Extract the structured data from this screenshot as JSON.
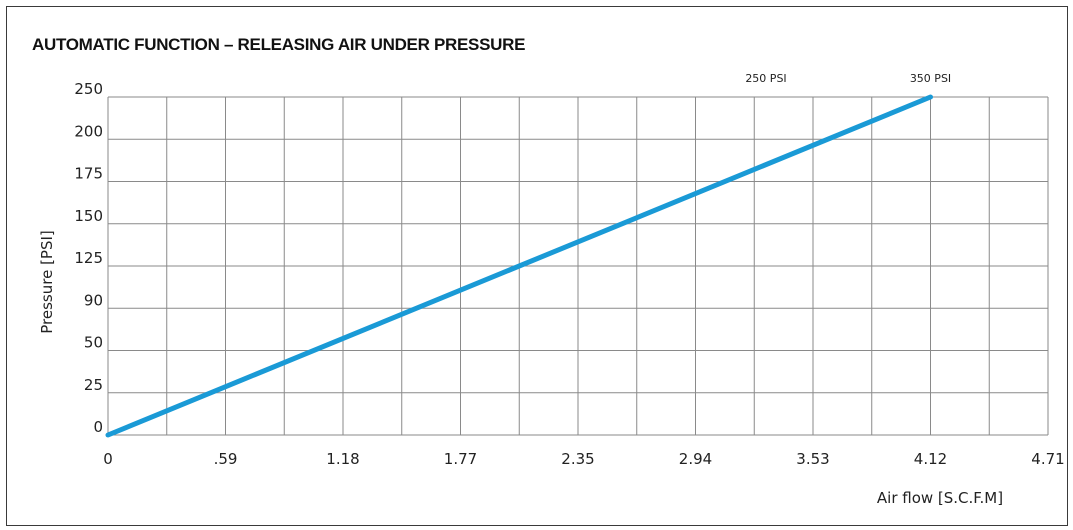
{
  "chart_data": {
    "type": "line",
    "title": "AUTOMATIC FUNCTION – RELEASING AIR UNDER PRESSURE",
    "xlabel": "Air flow [S.C.F.M]",
    "ylabel": "Pressure [PSI]",
    "x_tick_labels": [
      "0",
      ".59",
      "1.18",
      "1.77",
      "2.35",
      "2.94",
      "3.53",
      "4.12",
      "4.71"
    ],
    "y_tick_labels": [
      "0",
      "25",
      "50",
      "90",
      "125",
      "150",
      "175",
      "200",
      "250"
    ],
    "top_annotations": [
      {
        "text": "250 PSI",
        "at_x_tick": 5.6
      },
      {
        "text": "350 PSI",
        "at_x_tick": 7.0
      }
    ],
    "grid": true,
    "series": [
      {
        "color": "#1a9ad6",
        "points": [
          {
            "x_tick": 0,
            "y_tick": 0
          },
          {
            "x_tick": 7,
            "y_tick": 8
          }
        ]
      }
    ]
  },
  "colors": {
    "line": "#1a9ad6",
    "grid": "#8a8a8a",
    "text": "#222222"
  }
}
